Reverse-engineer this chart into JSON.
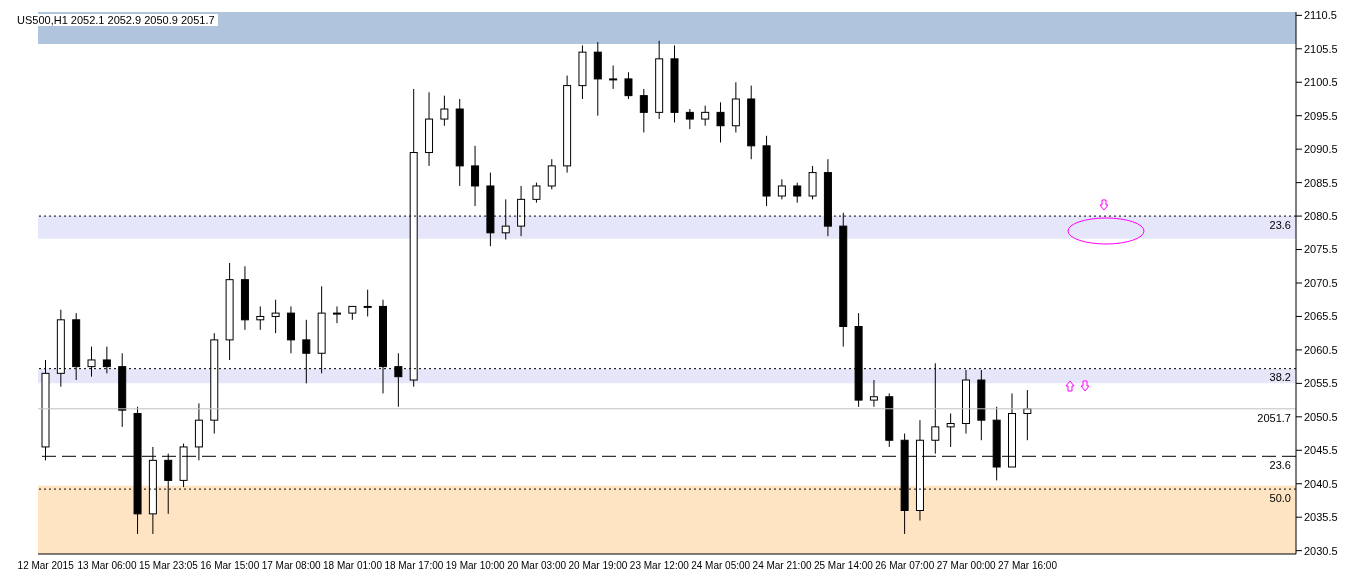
{
  "chart_data": {
    "type": "candlestick",
    "title": "US500,H1  2052.1 2052.9 2050.9 2051.7",
    "categories": [
      "12 Mar 2015",
      null,
      null,
      null,
      "13 Mar 06:00",
      null,
      null,
      null,
      "15 Mar 23:05",
      null,
      null,
      null,
      "16 Mar 15:00",
      null,
      null,
      null,
      "17 Mar 08:00",
      null,
      null,
      null,
      "18 Mar 01:00",
      null,
      null,
      null,
      "18 Mar 17:00",
      null,
      null,
      null,
      "19 Mar 10:00",
      null,
      null,
      null,
      "20 Mar 03:00",
      null,
      null,
      null,
      "20 Mar 19:00",
      null,
      null,
      null,
      "23 Mar 12:00",
      null,
      null,
      null,
      "24 Mar 05:00",
      null,
      null,
      null,
      "24 Mar 21:00",
      null,
      null,
      null,
      "25 Mar 14:00",
      null,
      null,
      null,
      "26 Mar 07:00",
      null,
      null,
      null,
      "27 Mar 00:00",
      null,
      null,
      null,
      "27 Mar 16:00",
      null,
      null,
      null,
      null,
      null,
      null,
      null,
      null,
      null,
      null,
      null,
      null,
      null,
      null,
      null,
      null,
      null
    ],
    "ohlc": [
      [
        2046,
        2059,
        2044,
        2057
      ],
      [
        2057,
        2066.5,
        2055,
        2065
      ],
      [
        2065,
        2066,
        2056,
        2058
      ],
      [
        2058,
        2061,
        2056.5,
        2059
      ],
      [
        2059,
        2061,
        2057,
        2058
      ],
      [
        2058,
        2060,
        2049,
        2051.5
      ],
      [
        2051,
        2052,
        2033,
        2036
      ],
      [
        2036,
        2046,
        2033,
        2044
      ],
      [
        2044,
        2045,
        2036,
        2041
      ],
      [
        2041,
        2046.5,
        2040,
        2046
      ],
      [
        2046,
        2052.5,
        2044,
        2050
      ],
      [
        2050,
        2063,
        2048,
        2062
      ],
      [
        2062,
        2073.5,
        2059,
        2071
      ],
      [
        2071,
        2073,
        2063.5,
        2065
      ],
      [
        2065,
        2067,
        2063.5,
        2065.5
      ],
      [
        2065.5,
        2068,
        2063,
        2066
      ],
      [
        2066,
        2067,
        2060,
        2062
      ],
      [
        2062,
        2065,
        2055.5,
        2060
      ],
      [
        2060,
        2070,
        2057,
        2066
      ],
      [
        2066,
        2067,
        2064.5,
        2066
      ],
      [
        2066,
        2067,
        2065,
        2067
      ],
      [
        2067,
        2069.5,
        2065.5,
        2067
      ],
      [
        2067,
        2068,
        2054,
        2058
      ],
      [
        2058,
        2060,
        2052,
        2056.5
      ],
      [
        2056,
        2099.5,
        2055,
        2090
      ],
      [
        2090,
        2099,
        2088,
        2095
      ],
      [
        2095,
        2098.5,
        2094,
        2096.5
      ],
      [
        2096.5,
        2098,
        2085,
        2088
      ],
      [
        2088,
        2091,
        2082,
        2085
      ],
      [
        2085,
        2087,
        2076,
        2078
      ],
      [
        2078,
        2083,
        2077,
        2079
      ],
      [
        2079,
        2085,
        2077.5,
        2083
      ],
      [
        2083,
        2085.5,
        2082.5,
        2085
      ],
      [
        2085,
        2089,
        2084.5,
        2088
      ],
      [
        2088,
        2101.5,
        2087,
        2100
      ],
      [
        2100,
        2106,
        2098,
        2105
      ],
      [
        2105,
        2106.5,
        2095.5,
        2101
      ],
      [
        2101,
        2103,
        2099.5,
        2101
      ],
      [
        2101,
        2102,
        2098,
        2098.5
      ],
      [
        2098.5,
        2099.5,
        2093,
        2096
      ],
      [
        2096,
        2106.7,
        2095,
        2104
      ],
      [
        2104,
        2106,
        2094.5,
        2096
      ],
      [
        2096,
        2096.5,
        2093.5,
        2095
      ],
      [
        2095,
        2097,
        2094,
        2096
      ],
      [
        2096,
        2097.5,
        2091.5,
        2094
      ],
      [
        2094,
        2100.5,
        2093,
        2098
      ],
      [
        2098,
        2100,
        2089,
        2091
      ],
      [
        2091,
        2092.5,
        2082,
        2083.5
      ],
      [
        2083.5,
        2086,
        2083,
        2085
      ],
      [
        2085,
        2085.5,
        2082.5,
        2083.5
      ],
      [
        2083.5,
        2088,
        2083,
        2087
      ],
      [
        2087,
        2089,
        2077.5,
        2079
      ],
      [
        2079,
        2081,
        2061,
        2064
      ],
      [
        2064,
        2066,
        2052,
        2053
      ],
      [
        2053,
        2056,
        2052,
        2053.5
      ],
      [
        2053.5,
        2054,
        2046,
        2047
      ],
      [
        2047,
        2048,
        2033,
        2036.5
      ],
      [
        2036.5,
        2050,
        2035,
        2047
      ],
      [
        2047,
        2058.5,
        2045,
        2049
      ],
      [
        2049,
        2051,
        2046,
        2049.5
      ],
      [
        2049.5,
        2057.5,
        2048,
        2056
      ],
      [
        2056,
        2057.5,
        2047,
        2050
      ],
      [
        2050,
        2052,
        2041,
        2043
      ],
      [
        2043,
        2054,
        2043,
        2051
      ],
      [
        2051,
        2054.5,
        2047,
        2051.7
      ],
      null,
      null,
      null,
      null,
      null,
      null,
      null,
      null,
      null,
      null,
      null,
      null,
      null,
      null,
      null,
      null,
      null
    ],
    "ylim": [
      2030,
      2111
    ],
    "yticks": [
      2030.5,
      2035.5,
      2040.5,
      2045.5,
      2050.5,
      2055.5,
      2060.5,
      2065.5,
      2070.5,
      2075.5,
      2080.5,
      2085.5,
      2090.5,
      2095.5,
      2100.5,
      2105.5,
      2110.5
    ],
    "bands": [
      {
        "axis": "y",
        "from": 2106.2,
        "to": 2111,
        "color": "#b0c4de"
      },
      {
        "axis": "y",
        "from": 2077.1,
        "to": 2080.5,
        "color": "#e6e6fa"
      },
      {
        "axis": "y",
        "from": 2055.5,
        "to": 2057.7,
        "color": "#e6e6fa"
      },
      {
        "axis": "y",
        "from": 2030,
        "to": 2040.2,
        "color": "#ffe4c4"
      }
    ],
    "ref_lines": [
      {
        "axis": "y",
        "value": 2080.5,
        "line_style": "dotted",
        "color": "#000000"
      },
      {
        "axis": "y",
        "value": 2057.7,
        "line_style": "dotted",
        "color": "#000000"
      },
      {
        "axis": "y",
        "value": 2051.7,
        "label": "2051.7",
        "line_style": "solid",
        "color": "#c0c0c0"
      },
      {
        "axis": "y",
        "value": 2044.6,
        "line_style": "dashed",
        "color": "#000000"
      },
      {
        "axis": "y",
        "value": 2039.7,
        "line_style": "dotted",
        "color": "#000000"
      }
    ],
    "annotations": [
      {
        "text": "23.6",
        "y": 2080.5
      },
      {
        "text": "38.2",
        "y": 2057.7
      },
      {
        "text": "23.6",
        "y": 2044.6
      },
      {
        "text": "50.0",
        "y": 2039.7
      }
    ]
  }
}
